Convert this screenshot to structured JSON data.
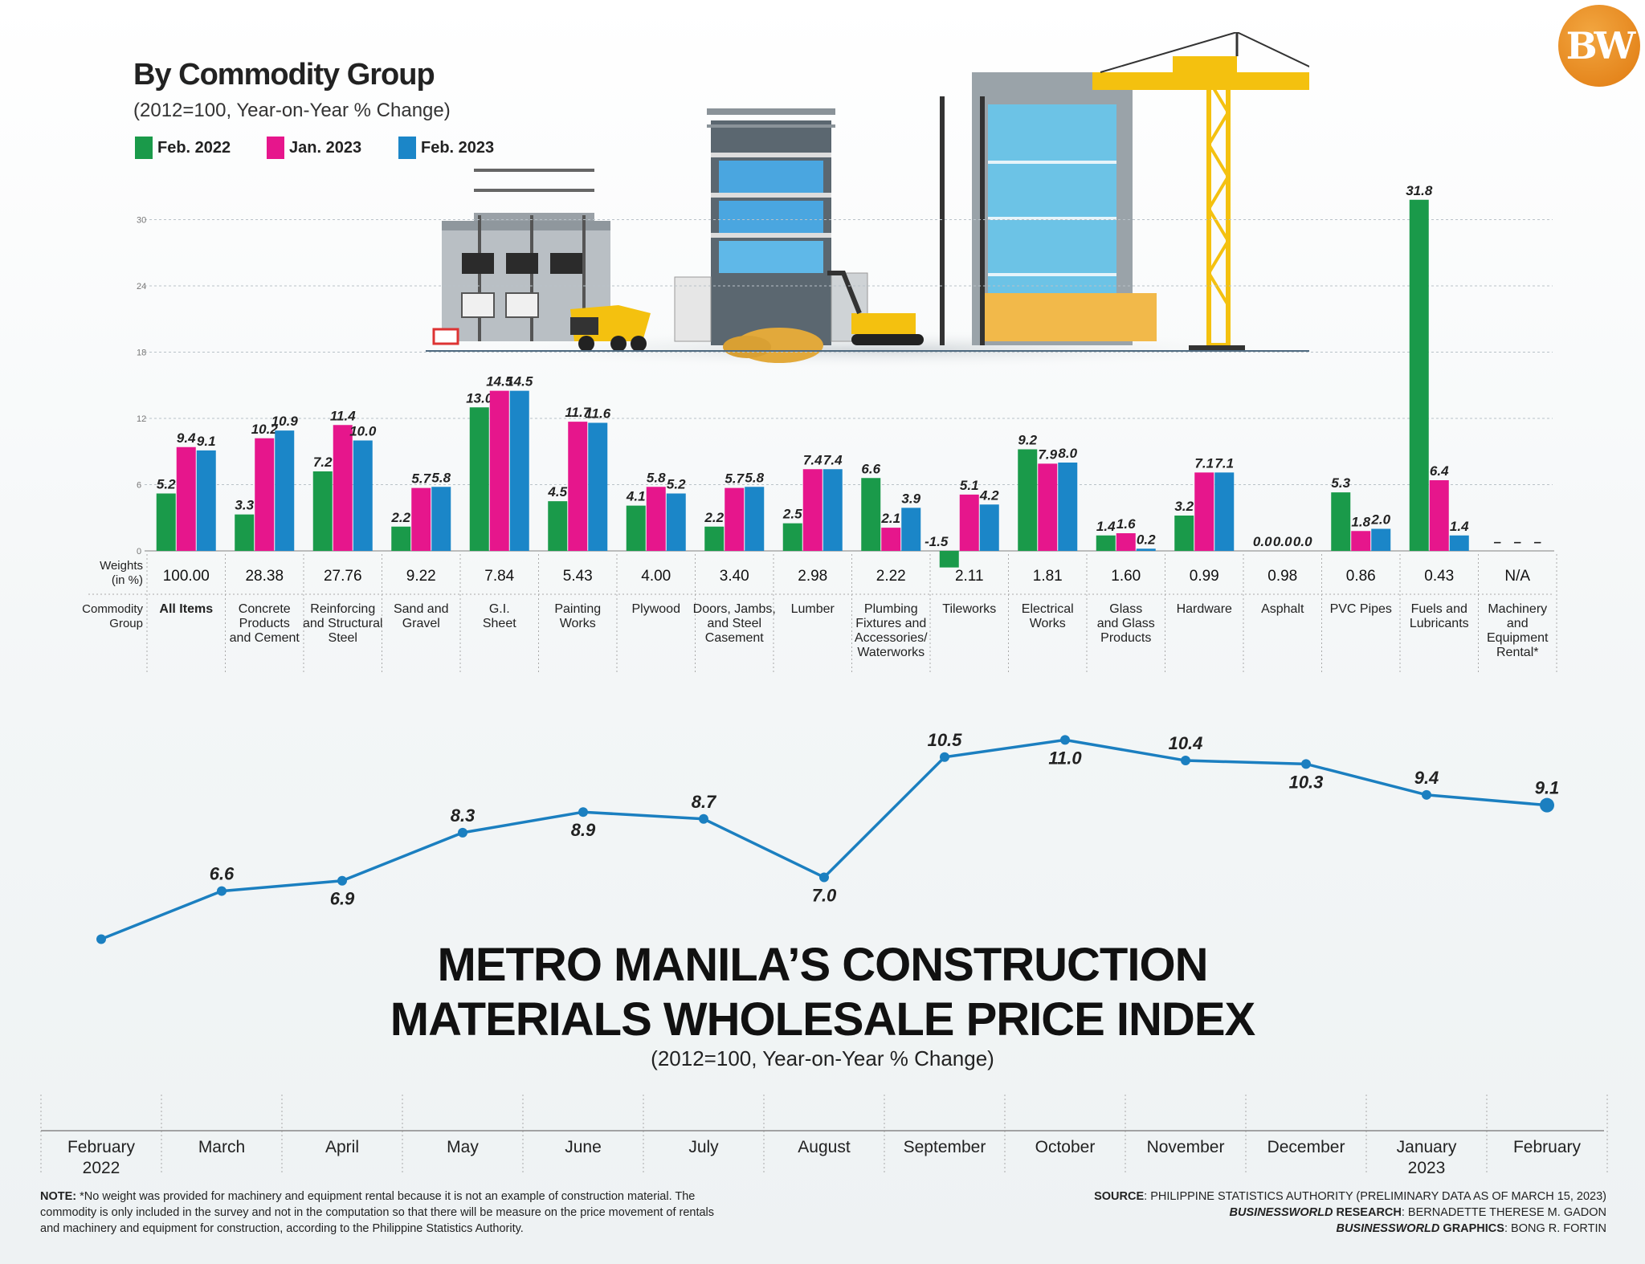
{
  "logo": {
    "text": "BW"
  },
  "bar_chart": {
    "title": "By Commodity Group",
    "subtitle": "(2012=100, Year-on-Year % Change)",
    "legend": [
      {
        "label": "Feb. 2022",
        "color": "#1a9a4a"
      },
      {
        "label": "Jan. 2023",
        "color": "#e6168c"
      },
      {
        "label": "Feb. 2023",
        "color": "#1b86c8"
      }
    ],
    "row_labels": {
      "weights": [
        "Weights",
        "(in %)"
      ],
      "group": [
        "Commodity",
        "Group"
      ]
    }
  },
  "line_chart": {
    "title_lines": [
      "METRO MANILA’S CONSTRUCTION",
      "MATERIALS WHOLESALE PRICE INDEX"
    ],
    "subtitle": "(2012=100, Year-on-Year % Change)"
  },
  "chart_data": [
    {
      "type": "bar",
      "title": "By Commodity Group",
      "subtitle": "(2012=100, Year-on-Year % Change)",
      "ylim": [
        -2,
        32
      ],
      "yticks": [
        0,
        6,
        12,
        18,
        24,
        30
      ],
      "categories": [
        {
          "name": [
            "All Items"
          ],
          "weight": "100.00",
          "bold": true
        },
        {
          "name": [
            "Concrete",
            "Products",
            "and Cement"
          ],
          "weight": "28.38"
        },
        {
          "name": [
            "Reinforcing",
            "and Structural",
            "Steel"
          ],
          "weight": "27.76"
        },
        {
          "name": [
            "Sand and",
            "Gravel"
          ],
          "weight": "9.22"
        },
        {
          "name": [
            "G.I.",
            "Sheet"
          ],
          "weight": "7.84"
        },
        {
          "name": [
            "Painting",
            "Works"
          ],
          "weight": "5.43"
        },
        {
          "name": [
            "Plywood"
          ],
          "weight": "4.00"
        },
        {
          "name": [
            "Doors, Jambs,",
            "and Steel",
            "Casement"
          ],
          "weight": "3.40"
        },
        {
          "name": [
            "Lumber"
          ],
          "weight": "2.98"
        },
        {
          "name": [
            "Plumbing",
            "Fixtures and",
            "Accessories/",
            "Waterworks"
          ],
          "weight": "2.22"
        },
        {
          "name": [
            "Tileworks"
          ],
          "weight": "2.11"
        },
        {
          "name": [
            "Electrical",
            "Works"
          ],
          "weight": "1.81"
        },
        {
          "name": [
            "Glass",
            "and Glass",
            "Products"
          ],
          "weight": "1.60"
        },
        {
          "name": [
            "Hardware"
          ],
          "weight": "0.99"
        },
        {
          "name": [
            "Asphalt"
          ],
          "weight": "0.98"
        },
        {
          "name": [
            "PVC Pipes"
          ],
          "weight": "0.86"
        },
        {
          "name": [
            "Fuels and",
            "Lubricants"
          ],
          "weight": "0.43"
        },
        {
          "name": [
            "Machinery",
            "and",
            "Equipment",
            "Rental*"
          ],
          "weight": "N/A"
        }
      ],
      "series": [
        {
          "name": "Feb. 2022",
          "color": "#1a9a4a",
          "values": [
            5.2,
            3.3,
            7.2,
            2.2,
            13.0,
            4.5,
            4.1,
            2.2,
            2.5,
            6.6,
            -1.5,
            9.2,
            1.4,
            3.2,
            0.0,
            5.3,
            31.8,
            null
          ]
        },
        {
          "name": "Jan. 2023",
          "color": "#e6168c",
          "values": [
            9.4,
            10.2,
            11.4,
            5.7,
            14.5,
            11.7,
            5.8,
            5.7,
            7.4,
            2.1,
            5.1,
            7.9,
            1.6,
            7.1,
            0.0,
            1.8,
            6.4,
            null
          ]
        },
        {
          "name": "Feb. 2023",
          "color": "#1b86c8",
          "values": [
            9.1,
            10.9,
            10.0,
            5.8,
            14.5,
            11.6,
            5.2,
            5.8,
            7.4,
            3.9,
            4.2,
            8.0,
            0.2,
            7.1,
            0.0,
            2.0,
            1.4,
            null
          ]
        }
      ],
      "na_label": "–",
      "row_labels": [
        "Weights (in %)",
        "Commodity Group"
      ]
    },
    {
      "type": "line",
      "title": "METRO MANILA’S CONSTRUCTION MATERIALS WHOLESALE PRICE INDEX",
      "subtitle": "(2012=100, Year-on-Year % Change)",
      "color": "#1b7fc0",
      "categories": [
        [
          "February",
          "2022"
        ],
        [
          "March"
        ],
        [
          "April"
        ],
        [
          "May"
        ],
        [
          "June"
        ],
        [
          "July"
        ],
        [
          "August"
        ],
        [
          "September"
        ],
        [
          "October"
        ],
        [
          "November"
        ],
        [
          "December"
        ],
        [
          "January",
          "2023"
        ],
        [
          "February"
        ]
      ],
      "values": [
        5.2,
        6.6,
        6.9,
        8.3,
        8.9,
        8.7,
        7.0,
        10.5,
        11.0,
        10.4,
        10.3,
        9.4,
        9.1
      ],
      "label_position": [
        "below",
        "above",
        "below",
        "above",
        "below",
        "above",
        "below",
        "above",
        "below",
        "above",
        "below",
        "above",
        "above"
      ],
      "ylim": [
        5,
        11.5
      ]
    }
  ],
  "footer": {
    "note_label": "NOTE:",
    "note_text": "*No weight was provided for machinery and equipment rental because it is not an example of construction material. The commodity is only included in the survey and not in the computation so that there will be measure on the price movement of rentals and machinery and equipment for construction, according to the Philippine Statistics Authority.",
    "source_label": "SOURCE",
    "source_text": ": PHILIPPINE STATISTICS AUTHORITY (PRELIMINARY DATA AS OF MARCH 15, 2023)",
    "research_label1": "BUSINESSWORLD",
    "research_label2": " RESEARCH",
    "research_text": ": BERNADETTE THERESE M. GADON",
    "graphics_label1": "BUSINESSWORLD",
    "graphics_label2": " GRAPHICS",
    "graphics_text": ": BONG R. FORTIN"
  }
}
